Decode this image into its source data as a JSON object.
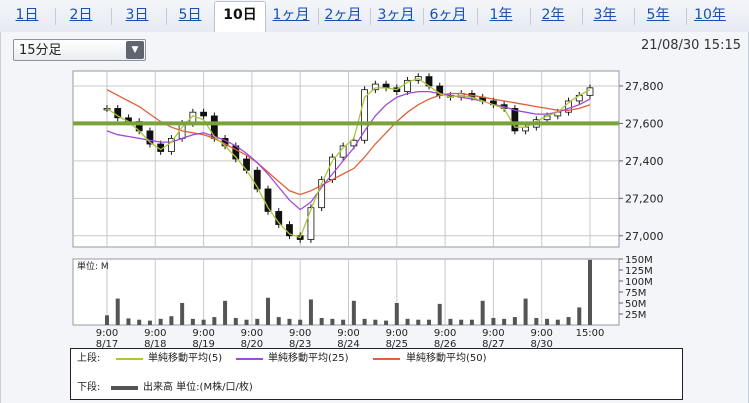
{
  "tabs": [
    {
      "label": "1日"
    },
    {
      "label": "2日"
    },
    {
      "label": "3日"
    },
    {
      "label": "5日"
    },
    {
      "label": "10日"
    },
    {
      "label": "1ヶ月"
    },
    {
      "label": "2ヶ月"
    },
    {
      "label": "3ヶ月"
    },
    {
      "label": "6ヶ月"
    },
    {
      "label": "1年"
    },
    {
      "label": "2年"
    },
    {
      "label": "3年"
    },
    {
      "label": "5年"
    },
    {
      "label": "10年"
    }
  ],
  "active_tab": "10日",
  "interval_select": {
    "value": "15分足"
  },
  "timestamp": "21/08/30 15:15",
  "colors": {
    "ma5": "#a8c83a",
    "ma25": "#a048d8",
    "ma50": "#e0603a",
    "candle": "#111111",
    "hline": "#7aa23a",
    "volume": "#555555",
    "link": "#1a4fb0"
  },
  "legend": {
    "upper_label": "上段:",
    "lower_label": "下段:",
    "ma5": "単純移動平均(5)",
    "ma25": "単純移動平均(25)",
    "ma50": "単純移動平均(50)",
    "volume": "出来高 単位:(M株/口/枚)"
  },
  "chart_data": {
    "type": "candlestick",
    "x_labels": [
      {
        "time": "9:00",
        "date": "8/17"
      },
      {
        "time": "9:00",
        "date": "8/18"
      },
      {
        "time": "9:00",
        "date": "8/19"
      },
      {
        "time": "9:00",
        "date": "8/20"
      },
      {
        "time": "9:00",
        "date": "8/23"
      },
      {
        "time": "9:00",
        "date": "8/24"
      },
      {
        "time": "9:00",
        "date": "8/25"
      },
      {
        "time": "9:00",
        "date": "8/26"
      },
      {
        "time": "9:00",
        "date": "8/27"
      },
      {
        "time": "9:00",
        "date": "8/30"
      },
      {
        "time": "15:00",
        "date": ""
      }
    ],
    "price_ylim": [
      26940,
      27880
    ],
    "price_ticks": [
      "27,800",
      "27,600",
      "27,400",
      "27,200",
      "27,000"
    ],
    "price_tick_values": [
      27800,
      27600,
      27400,
      27200,
      27000
    ],
    "horizontal_line": 27600,
    "volume_unit_label": "単位: M",
    "volume_ylim": [
      0,
      150
    ],
    "volume_ticks": [
      "150M",
      "125M",
      "100M",
      "75M",
      "50M",
      "25M"
    ],
    "volume_tick_values": [
      150,
      125,
      100,
      75,
      50,
      25
    ],
    "price_series": [
      27680,
      27630,
      27610,
      27560,
      27490,
      27450,
      27520,
      27600,
      27660,
      27640,
      27520,
      27480,
      27410,
      27350,
      27250,
      27130,
      27060,
      27000,
      26980,
      27150,
      27300,
      27420,
      27480,
      27510,
      27780,
      27810,
      27790,
      27770,
      27830,
      27850,
      27800,
      27750,
      27740,
      27760,
      27740,
      27720,
      27700,
      27680,
      27560,
      27580,
      27620,
      27640,
      27660,
      27720,
      27750,
      27790
    ],
    "ma5_series": [
      27680,
      27640,
      27610,
      27560,
      27500,
      27460,
      27500,
      27580,
      27640,
      27620,
      27530,
      27480,
      27420,
      27350,
      27260,
      27150,
      27070,
      27010,
      26990,
      27140,
      27280,
      27400,
      27470,
      27520,
      27740,
      27790,
      27790,
      27780,
      27820,
      27840,
      27800,
      27760,
      27740,
      27750,
      27740,
      27720,
      27700,
      27680,
      27580,
      27580,
      27610,
      27640,
      27660,
      27710,
      27750,
      27780
    ],
    "ma25_series": [
      27560,
      27540,
      27530,
      27520,
      27510,
      27500,
      27500,
      27520,
      27540,
      27550,
      27530,
      27510,
      27480,
      27440,
      27390,
      27330,
      27260,
      27190,
      27140,
      27180,
      27260,
      27330,
      27400,
      27470,
      27560,
      27640,
      27700,
      27740,
      27760,
      27770,
      27770,
      27760,
      27750,
      27740,
      27730,
      27720,
      27700,
      27690,
      27670,
      27660,
      27650,
      27650,
      27660,
      27680,
      27700,
      27730
    ],
    "ma50_series": [
      27780,
      27750,
      27720,
      27690,
      27650,
      27610,
      27580,
      27560,
      27550,
      27540,
      27520,
      27490,
      27460,
      27430,
      27390,
      27340,
      27290,
      27240,
      27220,
      27240,
      27270,
      27300,
      27330,
      27360,
      27420,
      27490,
      27550,
      27610,
      27660,
      27700,
      27730,
      27750,
      27760,
      27760,
      27750,
      27740,
      27730,
      27720,
      27710,
      27700,
      27690,
      27680,
      27670,
      27670,
      27680,
      27700
    ],
    "volume_series": [
      22,
      60,
      15,
      12,
      10,
      14,
      20,
      50,
      14,
      12,
      18,
      55,
      16,
      12,
      14,
      62,
      18,
      14,
      12,
      58,
      16,
      14,
      12,
      55,
      14,
      12,
      10,
      50,
      14,
      12,
      12,
      48,
      14,
      12,
      12,
      55,
      16,
      14,
      18,
      60,
      16,
      14,
      12,
      18,
      40,
      148
    ]
  }
}
